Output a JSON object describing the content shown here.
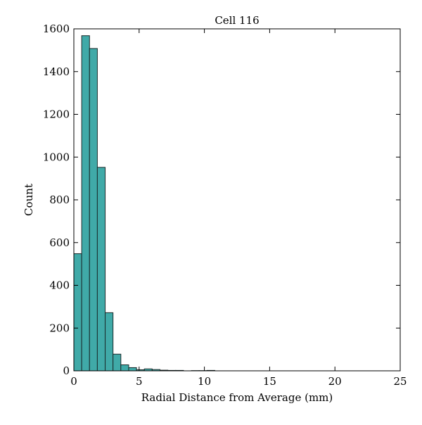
{
  "chart_data": {
    "type": "bar",
    "title": "Cell 116",
    "xlabel": "Radial Distance from Average (mm)",
    "ylabel": "Count",
    "xlim": [
      0,
      25
    ],
    "ylim": [
      0,
      1600
    ],
    "xticks": [
      0,
      5,
      10,
      15,
      20,
      25
    ],
    "yticks": [
      0,
      200,
      400,
      600,
      800,
      1000,
      1200,
      1400,
      1600
    ],
    "grid": false,
    "bar_color": "#40aaa8",
    "edge_color": "#1a2a2a",
    "bins": [
      {
        "x0": 0.0,
        "x1": 0.6,
        "value": 548
      },
      {
        "x0": 0.6,
        "x1": 1.2,
        "value": 1568
      },
      {
        "x0": 1.2,
        "x1": 1.8,
        "value": 1508
      },
      {
        "x0": 1.8,
        "x1": 2.4,
        "value": 952
      },
      {
        "x0": 2.4,
        "x1": 3.0,
        "value": 272
      },
      {
        "x0": 3.0,
        "x1": 3.6,
        "value": 78
      },
      {
        "x0": 3.6,
        "x1": 4.2,
        "value": 28
      },
      {
        "x0": 4.2,
        "x1": 4.8,
        "value": 15
      },
      {
        "x0": 4.8,
        "x1": 5.4,
        "value": 5
      },
      {
        "x0": 5.4,
        "x1": 6.0,
        "value": 9
      },
      {
        "x0": 6.0,
        "x1": 6.6,
        "value": 6
      },
      {
        "x0": 6.6,
        "x1": 7.2,
        "value": 3
      },
      {
        "x0": 7.2,
        "x1": 7.8,
        "value": 2
      },
      {
        "x0": 7.8,
        "x1": 8.4,
        "value": 2
      },
      {
        "x0": 8.4,
        "x1": 9.0,
        "value": 0
      },
      {
        "x0": 9.0,
        "x1": 9.6,
        "value": 1
      },
      {
        "x0": 9.6,
        "x1": 10.2,
        "value": 1
      },
      {
        "x0": 10.2,
        "x1": 10.8,
        "value": 2
      }
    ]
  }
}
